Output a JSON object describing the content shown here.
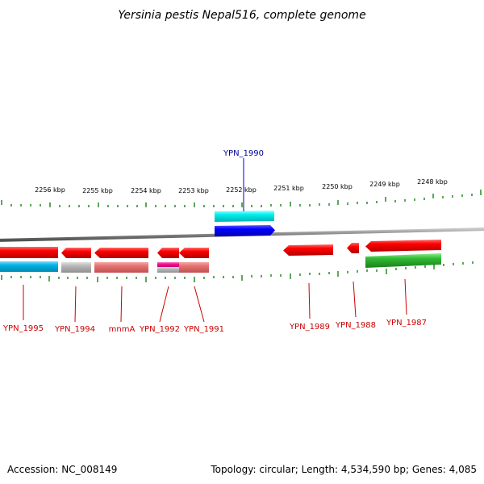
{
  "title": "Yersinia pestis Nepal516, complete genome",
  "footer": {
    "accession": "Accession: NC_008149",
    "topology": "Topology: circular; Length: 4,534,590 bp; Genes: 4,085"
  },
  "scale": {
    "ticks": [
      {
        "label": "2256 kbp"
      },
      {
        "label": "2255 kbp"
      },
      {
        "label": "2254 kbp"
      },
      {
        "label": "2253 kbp"
      },
      {
        "label": "2252 kbp"
      },
      {
        "label": "2251 kbp"
      },
      {
        "label": "2250 kbp"
      },
      {
        "label": "2249 kbp"
      },
      {
        "label": "2248 kbp"
      }
    ]
  },
  "genes": [
    {
      "label": "YPN_1990",
      "color": "#000099"
    },
    {
      "label": "YPN_1995",
      "color": "#cc0000"
    },
    {
      "label": "YPN_1994",
      "color": "#cc0000"
    },
    {
      "label": "mnmA",
      "color": "#cc0000"
    },
    {
      "label": "YPN_1992",
      "color": "#cc0000"
    },
    {
      "label": "YPN_1991",
      "color": "#cc0000"
    },
    {
      "label": "YPN_1989",
      "color": "#cc0000"
    },
    {
      "label": "YPN_1988",
      "color": "#cc0000"
    },
    {
      "label": "YPN_1987",
      "color": "#cc0000"
    }
  ],
  "colors": {
    "forward_cds": "#0000ff",
    "forward_feature": "#00e5e5",
    "reverse_cds": "#ff0000",
    "reverse_feature_cyan": "#00b4e6",
    "reverse_feature_grey": "#b3b3b3",
    "reverse_feature_salmon": "#e67373",
    "reverse_feature_magenta": "#ff1493",
    "reverse_feature_green": "#33aa33",
    "backbone": "#808080",
    "ticks": "#1a7f1a"
  }
}
